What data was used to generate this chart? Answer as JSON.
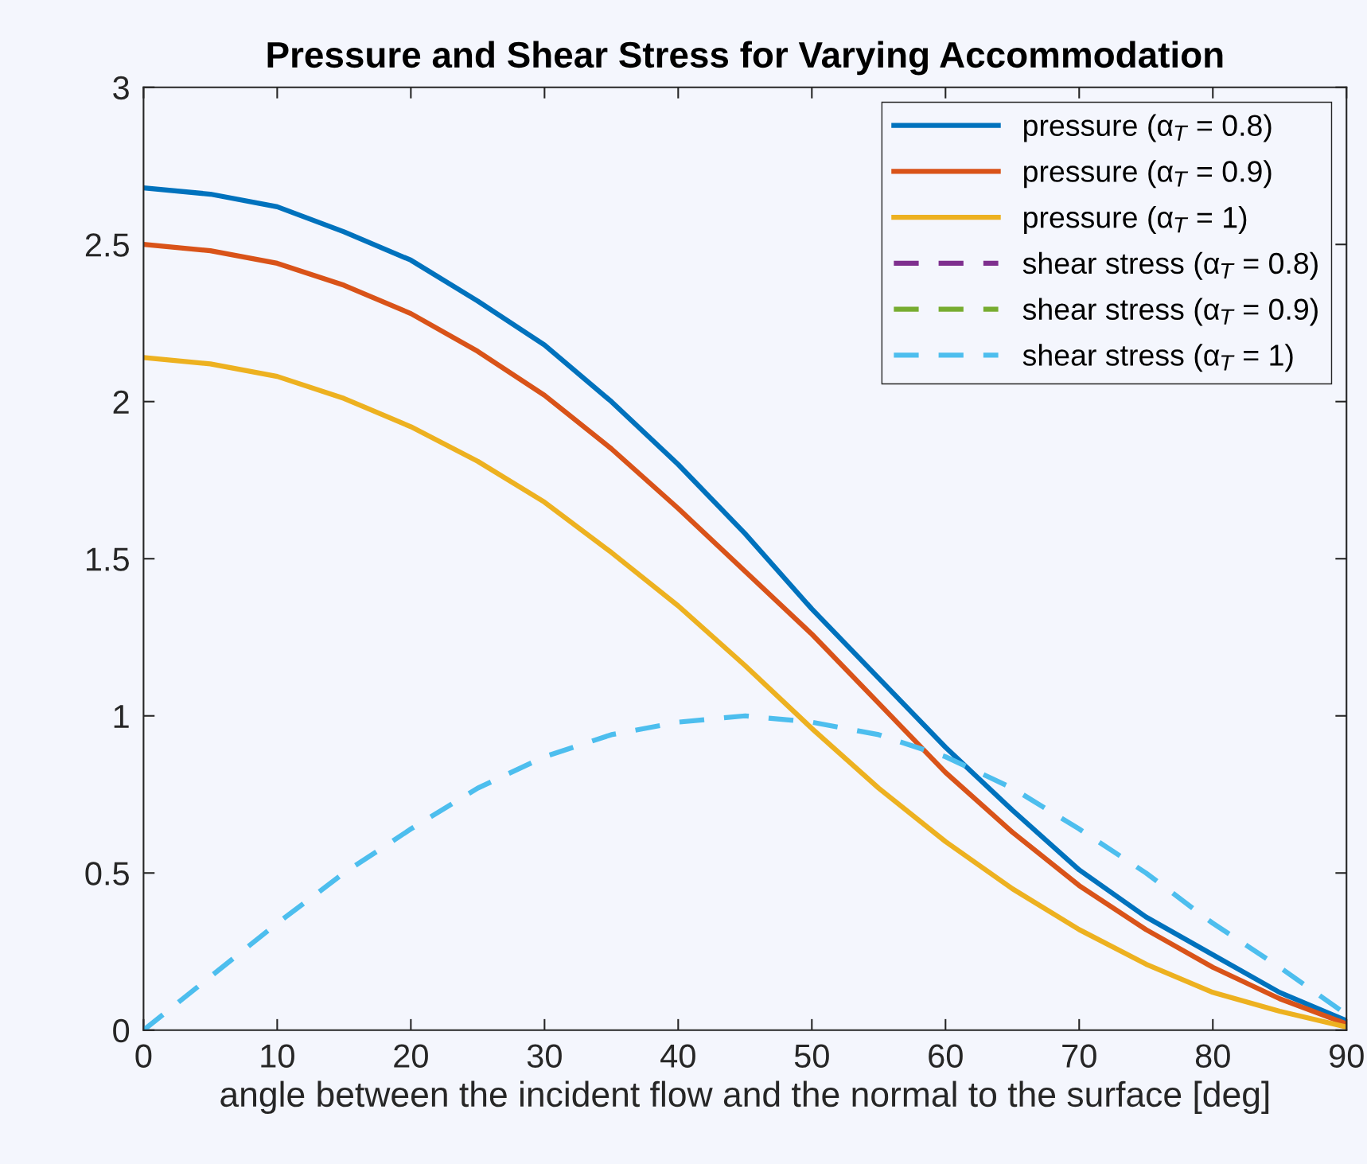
{
  "chart_data": {
    "type": "line",
    "title": "Pressure and Shear Stress for Varying Accommodation",
    "xlabel": "angle between the incident flow and the normal to the surface [deg]",
    "x": [
      0,
      5,
      10,
      15,
      20,
      25,
      30,
      35,
      40,
      45,
      50,
      55,
      60,
      65,
      70,
      75,
      80,
      85,
      90
    ],
    "series": [
      {
        "name": "pressure (α$_{T}$ = 0.8)",
        "color": "#0072bd",
        "line_style": "solid",
        "values": [
          2.68,
          2.66,
          2.62,
          2.54,
          2.45,
          2.32,
          2.18,
          2.0,
          1.8,
          1.58,
          1.34,
          1.12,
          0.9,
          0.7,
          0.51,
          0.36,
          0.24,
          0.12,
          0.03
        ]
      },
      {
        "name": "pressure (α$_{T}$ = 0.9)",
        "color": "#d95319",
        "line_style": "solid",
        "values": [
          2.5,
          2.48,
          2.44,
          2.37,
          2.28,
          2.16,
          2.02,
          1.85,
          1.66,
          1.46,
          1.26,
          1.04,
          0.82,
          0.63,
          0.46,
          0.32,
          0.2,
          0.1,
          0.02
        ]
      },
      {
        "name": "pressure (α$_{T}$ = 1)",
        "color": "#edb120",
        "line_style": "solid",
        "values": [
          2.14,
          2.12,
          2.08,
          2.01,
          1.92,
          1.81,
          1.68,
          1.52,
          1.35,
          1.16,
          0.96,
          0.77,
          0.6,
          0.45,
          0.32,
          0.21,
          0.12,
          0.06,
          0.01
        ]
      },
      {
        "name": "shear stress (α$_{T}$ = 0.8)",
        "color": "#7e2f8e",
        "line_style": "dashed",
        "values": [
          null,
          null,
          null,
          null,
          null,
          null,
          null,
          null,
          null,
          null,
          null,
          null,
          null,
          null,
          null,
          null,
          null,
          null,
          null
        ]
      },
      {
        "name": "shear stress (α$_{T}$ = 0.9)",
        "color": "#77ac30",
        "line_style": "dashed",
        "values": [
          null,
          null,
          null,
          null,
          null,
          null,
          null,
          null,
          null,
          null,
          null,
          null,
          null,
          null,
          null,
          null,
          null,
          null,
          null
        ]
      },
      {
        "name": "shear stress (α$_{T}$ = 1)",
        "color": "#4dbeee",
        "line_style": "dashed",
        "values": [
          0,
          0.17,
          0.34,
          0.5,
          0.64,
          0.77,
          0.87,
          0.94,
          0.98,
          1.0,
          0.98,
          0.94,
          0.87,
          0.77,
          0.64,
          0.5,
          0.34,
          0.2,
          0.05
        ]
      }
    ],
    "xlim": [
      0,
      90
    ],
    "xticks": [
      0,
      10,
      20,
      30,
      40,
      50,
      60,
      70,
      80,
      90
    ],
    "ylim": [
      0,
      3
    ],
    "yticks": [
      0,
      0.5,
      1,
      1.5,
      2,
      2.5,
      3
    ],
    "grid": false,
    "legend": "top right",
    "marker": "none"
  }
}
